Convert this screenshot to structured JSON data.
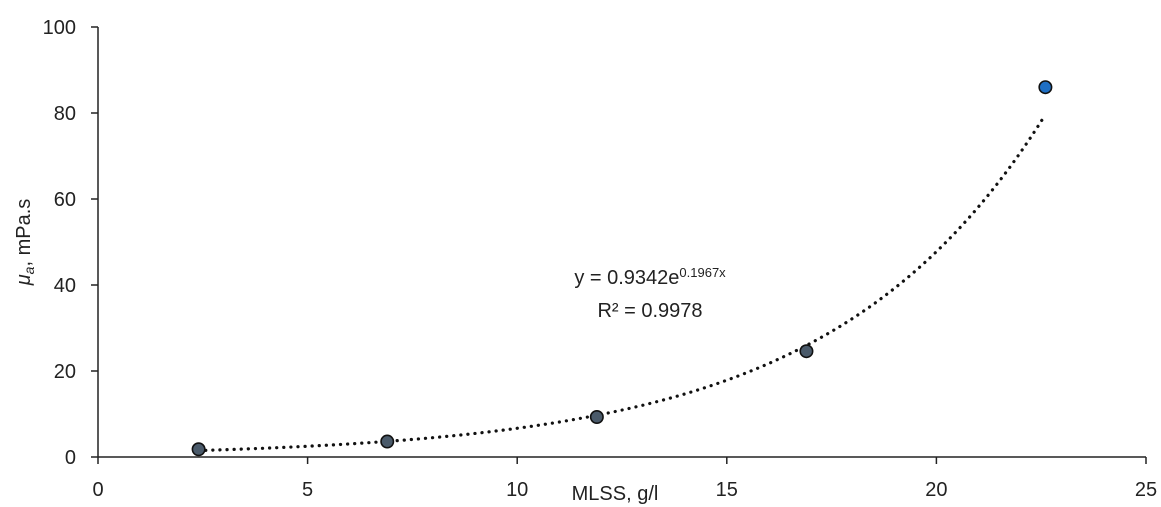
{
  "chart_data": {
    "type": "scatter",
    "xlim": [
      0,
      25
    ],
    "ylim": [
      0,
      100
    ],
    "x_ticks": [
      "0",
      "5",
      "10",
      "15",
      "20",
      "25"
    ],
    "y_ticks": [
      "0",
      "20",
      "40",
      "60",
      "80",
      "100"
    ],
    "xlabel": "MLSS, g/l",
    "ylabel_mu": "μ",
    "ylabel_sub": "a",
    "ylabel_rest": ", mPa.s",
    "grid": false,
    "points": [
      {
        "x": 2.4,
        "y": 1.8
      },
      {
        "x": 6.9,
        "y": 3.6
      },
      {
        "x": 11.9,
        "y": 9.3
      },
      {
        "x": 16.9,
        "y": 24.6
      },
      {
        "x": 22.6,
        "y": 86.0
      }
    ],
    "point_colors": [
      "#4a5a6a",
      "#4a5a6a",
      "#4a5a6a",
      "#4a5a6a",
      "#1f6fc4"
    ],
    "trendline": {
      "type": "exponential",
      "a": 0.9342,
      "b": 0.1967,
      "x_start": 2.4,
      "x_end": 22.6,
      "style": "dotted"
    },
    "equation_prefix": "y = 0.9342e",
    "equation_exponent": "0.1967x",
    "r_squared_text": "R² = 0.9978"
  }
}
